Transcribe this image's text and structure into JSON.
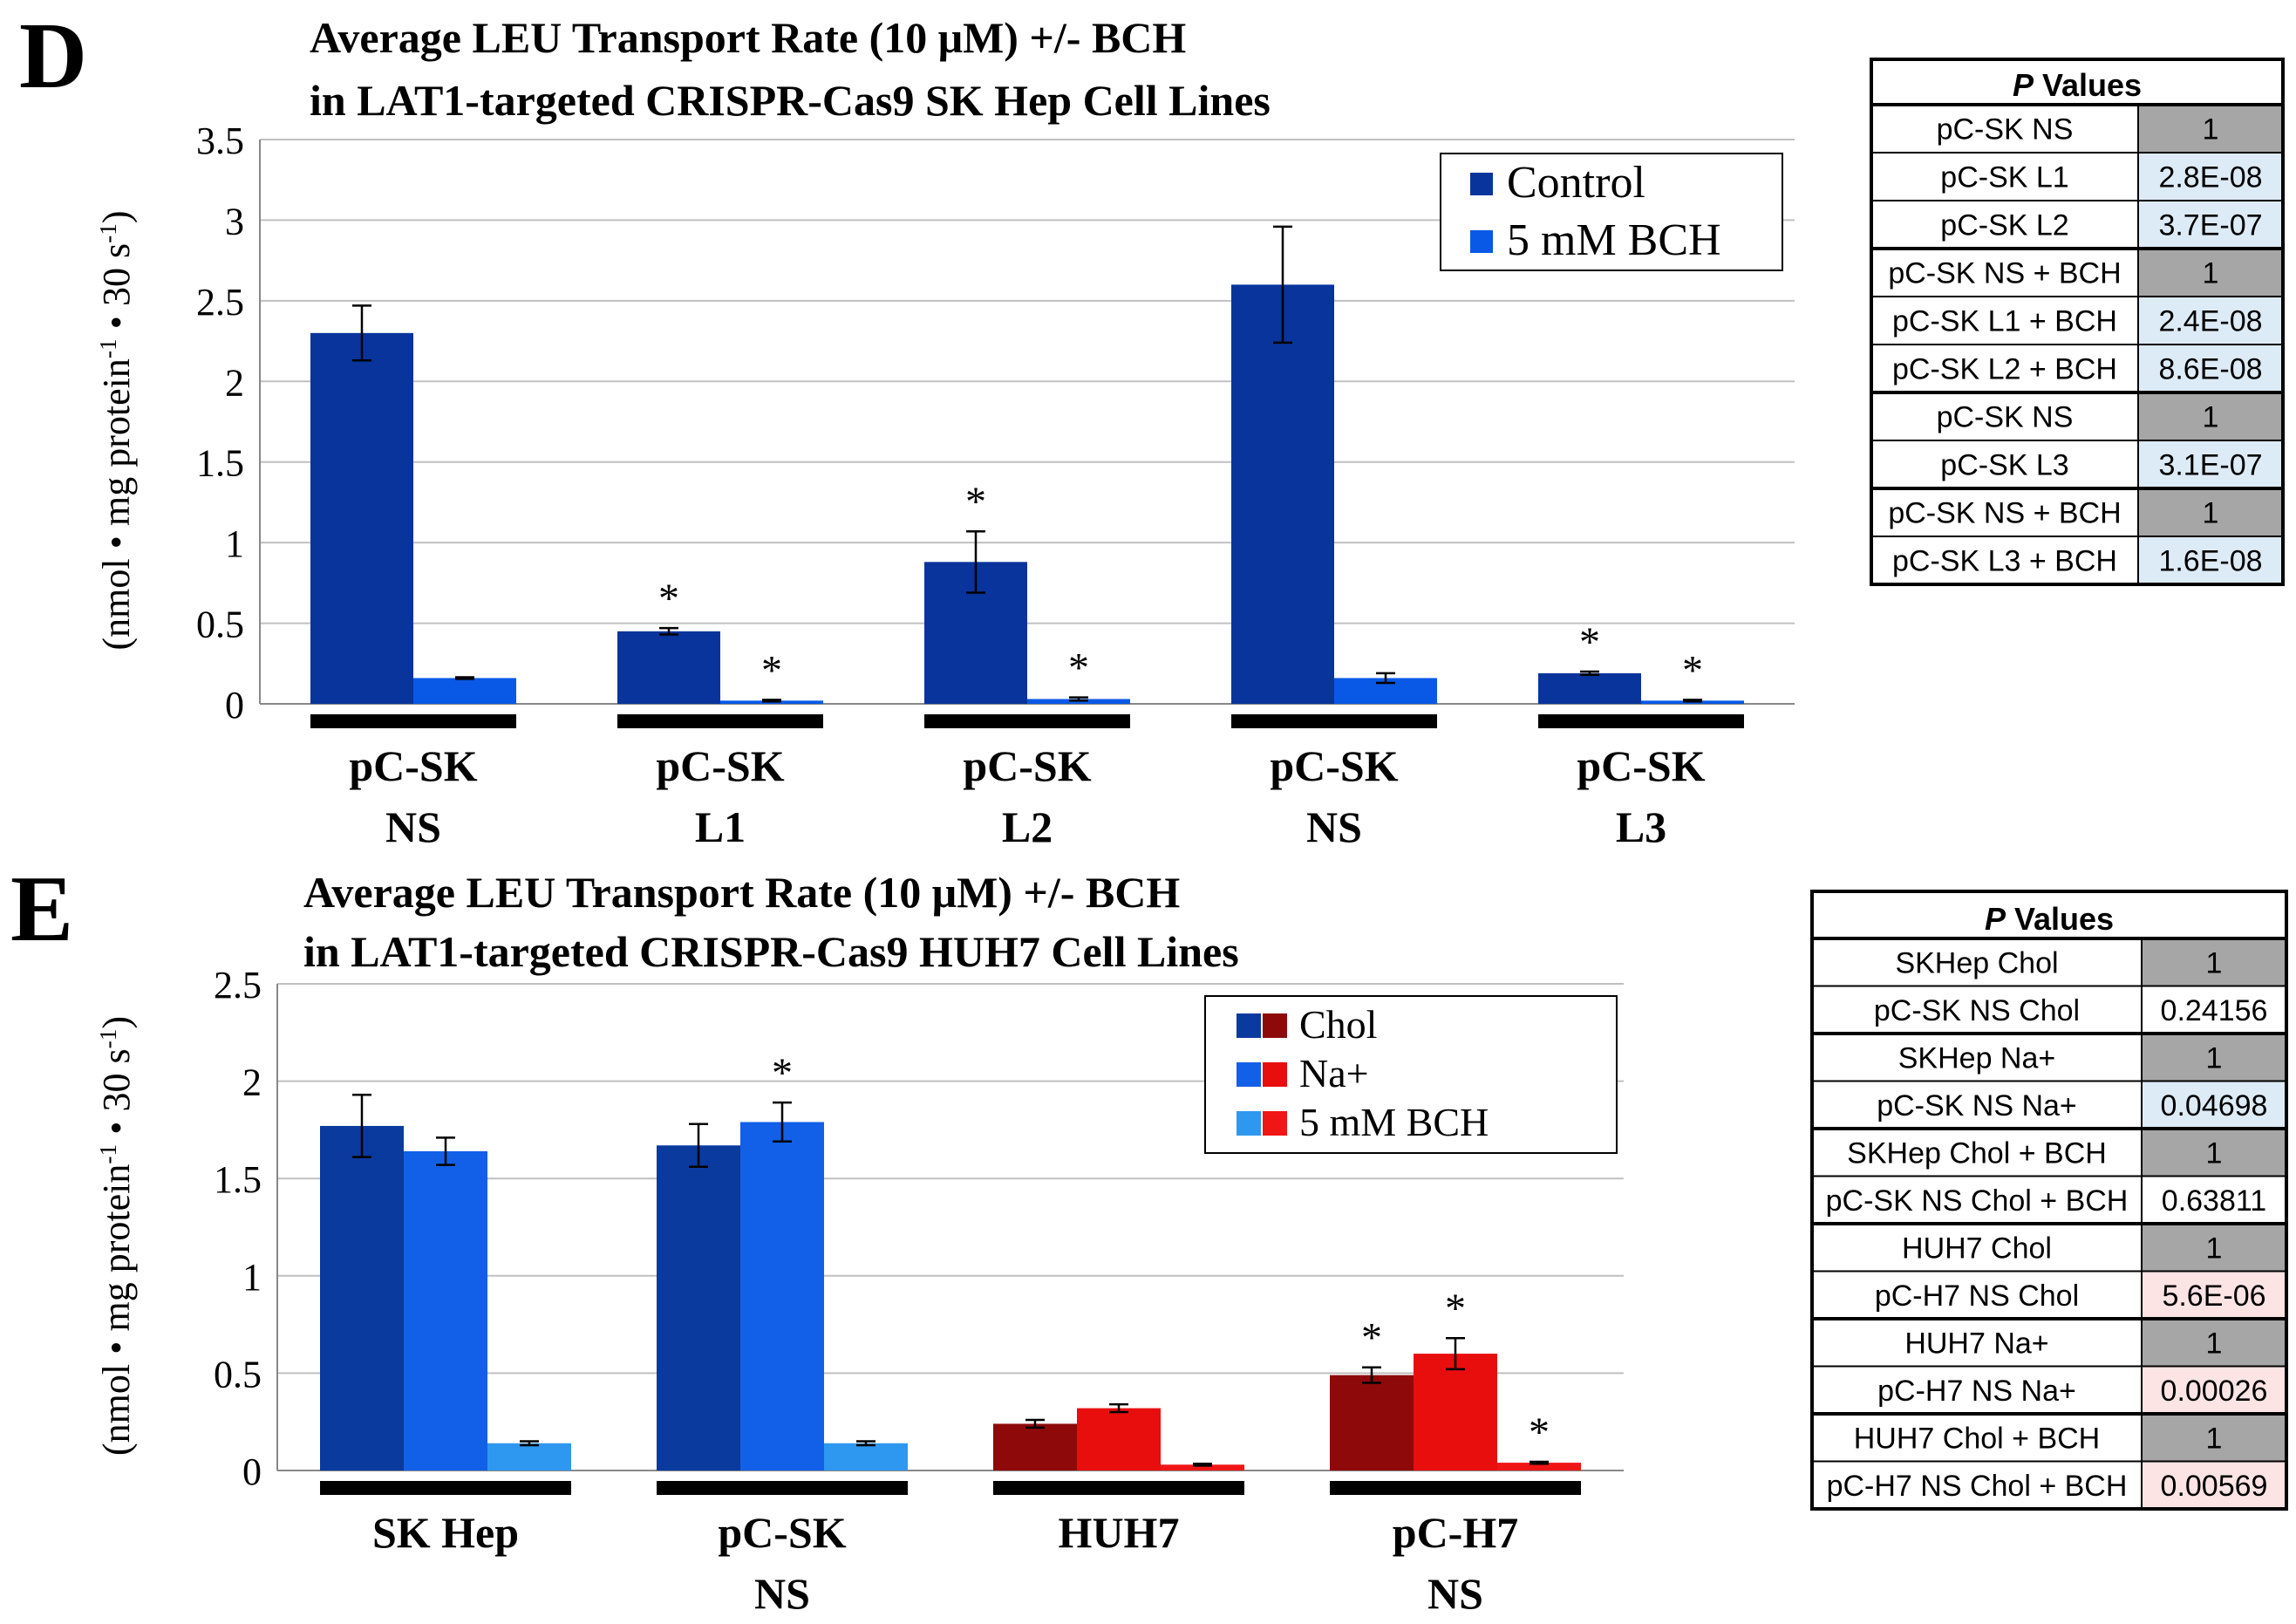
{
  "panels": [
    {
      "letter": "D",
      "title_line1": "Average LEU Transport  Rate (10 μM) +/- BCH",
      "title_line2": "in LAT1-targeted CRISPR-Cas9 SK Hep Cell Lines",
      "ylabel": "(nmol • mg protein-1 • 30 s-1)"
    },
    {
      "letter": "E",
      "title_line1": "Average LEU Transport  Rate (10 μM) +/- BCH",
      "title_line2": "in LAT1-targeted CRISPR-Cas9 HUH7 Cell Lines",
      "ylabel": "(nmol • mg protein-1 • 30 s-1)"
    }
  ],
  "colors": {
    "control": "#08349C",
    "bch_d": "#0A59E6",
    "e_chol_blue": "#0A3A9E",
    "e_na_blue": "#1260E8",
    "e_bch_blue": "#2E98F0",
    "e_chol_red": "#8E0A0A",
    "e_na_red": "#E80E0E",
    "e_bch_red": "#F01616",
    "grid": "#c0c0c0",
    "p_grey": "#A6A6A6",
    "p_blue": "#DDEBF7",
    "p_pink": "#FCE4E4"
  },
  "chart_data": [
    {
      "type": "bar",
      "title": "Average LEU Transport  Rate (10 μM) +/- BCH in LAT1-targeted CRISPR-Cas9 SK Hep Cell Lines",
      "ylabel": "(nmol • mg protein-1 • 30 s-1)",
      "ylim": [
        0,
        3.5
      ],
      "yticks": [
        0,
        0.5,
        1,
        1.5,
        2,
        2.5,
        3,
        3.5
      ],
      "ytick_labels": [
        "0",
        "0.5",
        "1",
        "1.5",
        "2",
        "2.5",
        "3",
        "3.5"
      ],
      "grid": true,
      "legend_position": "top-right",
      "categories": [
        {
          "line1": "pC-SK",
          "line2": "NS"
        },
        {
          "line1": "pC-SK",
          "line2": "L1"
        },
        {
          "line1": "pC-SK",
          "line2": "L2"
        },
        {
          "line1": "pC-SK",
          "line2": "NS"
        },
        {
          "line1": "pC-SK",
          "line2": "L3"
        }
      ],
      "series": [
        {
          "name": "Control",
          "values": [
            2.3,
            0.45,
            0.88,
            2.6,
            0.19
          ],
          "errors": [
            0.17,
            0.02,
            0.19,
            0.36,
            0.01
          ],
          "significant": [
            false,
            true,
            true,
            false,
            true
          ]
        },
        {
          "name": "5 mM BCH",
          "values": [
            0.16,
            0.02,
            0.03,
            0.16,
            0.02
          ],
          "errors": [
            0.005,
            0.005,
            0.01,
            0.03,
            0.005
          ],
          "significant": [
            false,
            true,
            true,
            false,
            true
          ]
        }
      ],
      "significance_marker": "*"
    },
    {
      "type": "bar",
      "title": "Average LEU Transport  Rate (10 μM) +/- BCH in LAT1-targeted CRISPR-Cas9 HUH7 Cell Lines",
      "ylabel": "(nmol • mg protein-1 • 30 s-1)",
      "ylim": [
        0,
        2.5
      ],
      "yticks": [
        0,
        0.5,
        1,
        1.5,
        2,
        2.5
      ],
      "ytick_labels": [
        "0",
        "0.5",
        "1",
        "1.5",
        "2",
        "2.5"
      ],
      "grid": true,
      "legend_position": "top-right",
      "categories": [
        {
          "line1": "SK Hep",
          "line2": ""
        },
        {
          "line1": "pC-SK",
          "line2": "NS"
        },
        {
          "line1": "HUH7",
          "line2": ""
        },
        {
          "line1": "pC-H7",
          "line2": "NS"
        }
      ],
      "series": [
        {
          "name": "Chol",
          "values": [
            1.77,
            1.67,
            0.24,
            0.49
          ],
          "errors": [
            0.16,
            0.11,
            0.02,
            0.04
          ],
          "significant": [
            false,
            false,
            false,
            true
          ]
        },
        {
          "name": "Na+",
          "values": [
            1.64,
            1.79,
            0.32,
            0.6
          ],
          "errors": [
            0.07,
            0.1,
            0.02,
            0.08
          ],
          "significant": [
            false,
            true,
            false,
            true
          ]
        },
        {
          "name": "5 mM BCH",
          "values": [
            0.14,
            0.14,
            0.03,
            0.04
          ],
          "errors": [
            0.01,
            0.01,
            0.005,
            0.005
          ],
          "significant": [
            false,
            false,
            false,
            true
          ]
        }
      ],
      "group_palette": [
        "blue",
        "blue",
        "red",
        "red"
      ],
      "significance_marker": "*"
    }
  ],
  "p_tables": [
    {
      "header_italic": "P",
      "header_rest": " Values",
      "rows": [
        {
          "label": "pC-SK NS",
          "value": "1",
          "shade": "grey"
        },
        {
          "label": "pC-SK L1",
          "value": "2.8E-08",
          "shade": "blue"
        },
        {
          "label": "pC-SK L2",
          "value": "3.7E-07",
          "shade": "blue"
        },
        {
          "label": "pC-SK NS + BCH",
          "value": "1",
          "shade": "grey"
        },
        {
          "label": "pC-SK L1 + BCH",
          "value": "2.4E-08",
          "shade": "blue"
        },
        {
          "label": "pC-SK L2 + BCH",
          "value": "8.6E-08",
          "shade": "blue"
        },
        {
          "label": "pC-SK NS",
          "value": "1",
          "shade": "grey"
        },
        {
          "label": "pC-SK L3",
          "value": "3.1E-07",
          "shade": "blue"
        },
        {
          "label": "pC-SK NS + BCH",
          "value": "1",
          "shade": "grey"
        },
        {
          "label": "pC-SK L3 + BCH",
          "value": "1.6E-08",
          "shade": "blue"
        }
      ]
    },
    {
      "header_italic": "P",
      "header_rest": " Values",
      "rows": [
        {
          "label": "SKHep Chol",
          "value": "1",
          "shade": "grey"
        },
        {
          "label": "pC-SK NS Chol",
          "value": "0.24156",
          "shade": "white"
        },
        {
          "label": "SKHep Na+",
          "value": "1",
          "shade": "grey"
        },
        {
          "label": "pC-SK NS Na+",
          "value": "0.04698",
          "shade": "blue"
        },
        {
          "label": "SKHep Chol + BCH",
          "value": "1",
          "shade": "grey"
        },
        {
          "label": "pC-SK NS Chol + BCH",
          "value": "0.63811",
          "shade": "white"
        },
        {
          "label": "HUH7 Chol",
          "value": "1",
          "shade": "grey"
        },
        {
          "label": "pC-H7 NS Chol",
          "value": "5.6E-06",
          "shade": "pink"
        },
        {
          "label": "HUH7 Na+",
          "value": "1",
          "shade": "grey"
        },
        {
          "label": "pC-H7 NS Na+",
          "value": "0.00026",
          "shade": "pink"
        },
        {
          "label": "HUH7 Chol + BCH",
          "value": "1",
          "shade": "grey"
        },
        {
          "label": "pC-H7 NS Chol + BCH",
          "value": "0.00569",
          "shade": "pink"
        }
      ]
    }
  ]
}
